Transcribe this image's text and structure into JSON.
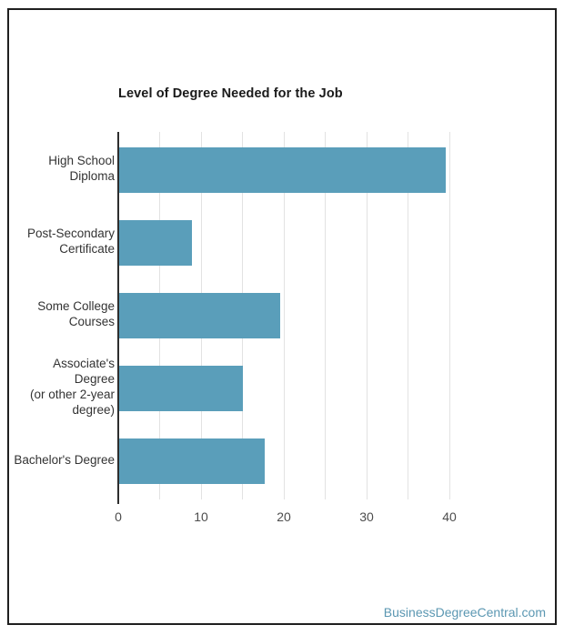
{
  "chart_data": {
    "type": "bar",
    "orientation": "horizontal",
    "title": "Level of Degree Needed for the Job",
    "categories": [
      "High School Diploma",
      "Post-Secondary Certificate",
      "Some College Courses",
      "Associate's Degree (or other 2-year degree)",
      "Bachelor's Degree"
    ],
    "category_lines": [
      [
        "High School",
        "Diploma"
      ],
      [
        "Post-Secondary",
        "Certificate"
      ],
      [
        "Some College",
        "Courses"
      ],
      [
        "Associate's Degree",
        "(or other 2-year",
        "degree)"
      ],
      [
        "Bachelor's Degree"
      ]
    ],
    "values": [
      39.4,
      8.8,
      19.5,
      14.9,
      17.6
    ],
    "xlabel": "",
    "ylabel": "",
    "xlim": [
      0,
      40
    ],
    "x_ticks": [
      0,
      10,
      20,
      30,
      40
    ],
    "gridline_step": 5,
    "grid": true,
    "legend": false,
    "bar_color": "#5a9eba",
    "gridline_color": "#e2e2e2",
    "axis_line_color": "#2e2e2e"
  },
  "footer": {
    "text": "BusinessDegreeCentral.com",
    "color": "#5b97b2"
  }
}
